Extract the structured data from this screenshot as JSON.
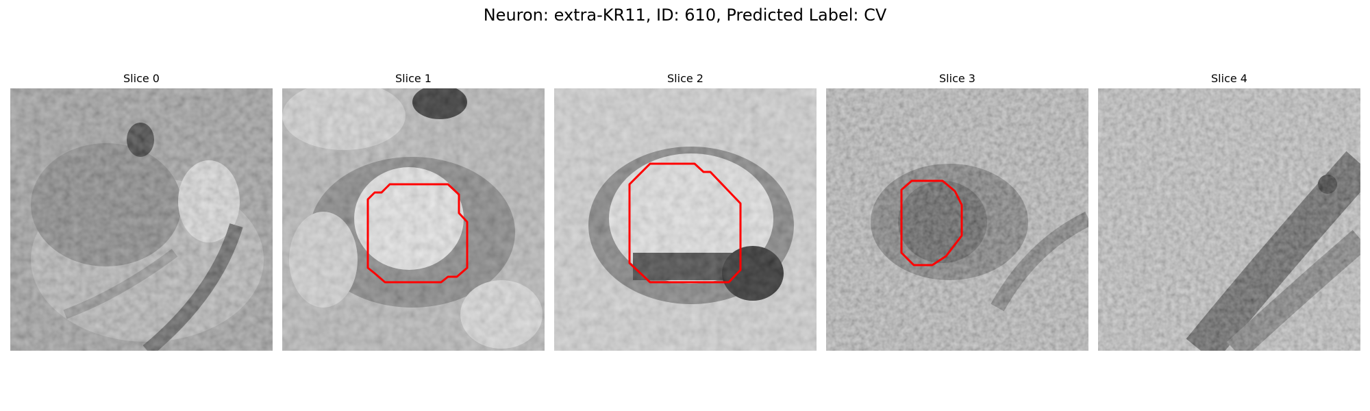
{
  "figure": {
    "title": "Neuron: extra-KR11, ID: 610, Predicted Label: CV",
    "contour_color": "#ff0000"
  },
  "panels": [
    {
      "title": "Slice 0",
      "has_contour": false
    },
    {
      "title": "Slice 1",
      "has_contour": true
    },
    {
      "title": "Slice 2",
      "has_contour": true
    },
    {
      "title": "Slice 3",
      "has_contour": true
    },
    {
      "title": "Slice 4",
      "has_contour": false
    }
  ]
}
